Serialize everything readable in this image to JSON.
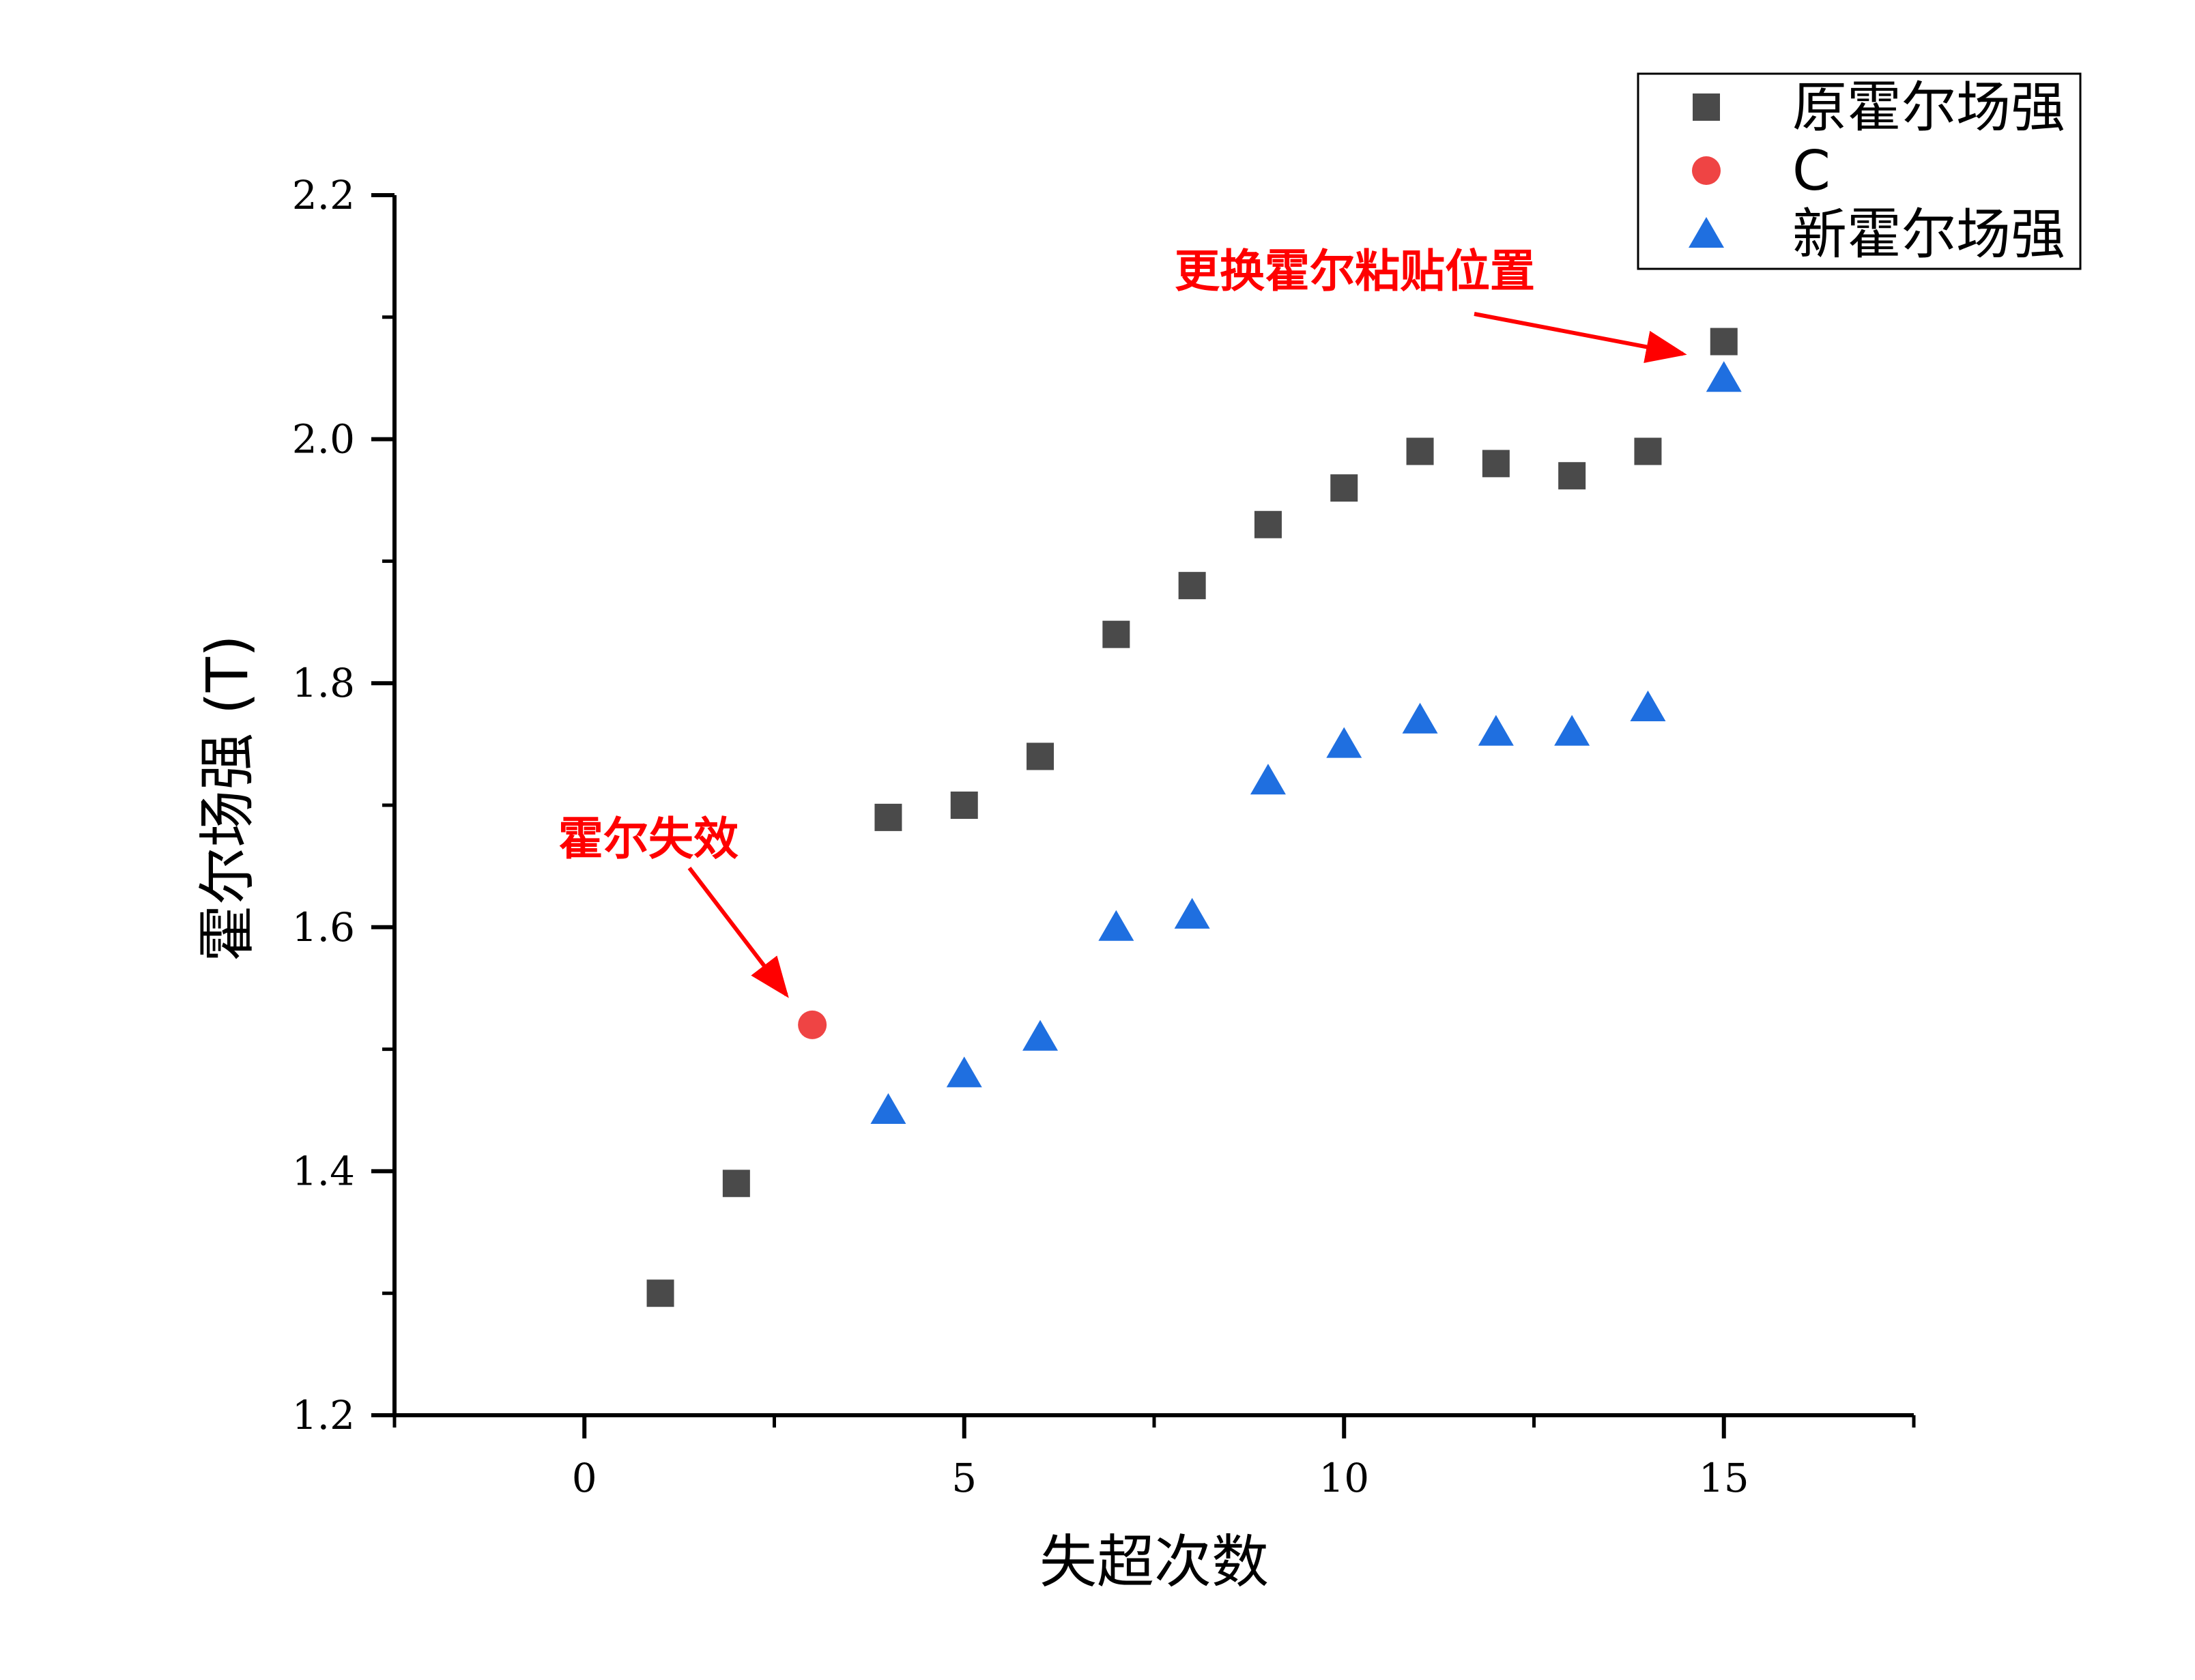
{
  "chart_data": {
    "type": "scatter",
    "title": "",
    "xlabel": "失超次数",
    "ylabel": "霍尔场强 (T)",
    "xlim": [
      -2.5,
      17.5
    ],
    "ylim": [
      1.2,
      2.2
    ],
    "x_ticks": [
      0,
      5,
      10,
      15
    ],
    "y_ticks": [
      1.2,
      1.4,
      1.6,
      1.8,
      2.0,
      2.2
    ],
    "x_tick_labels": [
      "0",
      "5",
      "10",
      "15"
    ],
    "y_tick_labels": [
      "1.2",
      "1.4",
      "1.6",
      "1.8",
      "2.0",
      "2.2"
    ],
    "grid": false,
    "legend_position": "top-right",
    "series": [
      {
        "name": "原霍尔场强",
        "marker": "square",
        "color": "#4a4a4a",
        "x": [
          1,
          2,
          4,
          5,
          6,
          7,
          8,
          9,
          10,
          11,
          12,
          13,
          14,
          15
        ],
        "y": [
          1.3,
          1.39,
          1.69,
          1.7,
          1.74,
          1.84,
          1.88,
          1.93,
          1.96,
          1.99,
          1.98,
          1.97,
          1.99,
          2.08
        ]
      },
      {
        "name": "C",
        "marker": "circle",
        "color": "#ef4444",
        "x": [
          3
        ],
        "y": [
          1.52
        ]
      },
      {
        "name": "新霍尔场强",
        "marker": "triangle",
        "color": "#1f6fe0",
        "x": [
          4,
          5,
          6,
          7,
          8,
          9,
          10,
          11,
          12,
          13,
          14,
          15
        ],
        "y": [
          1.45,
          1.48,
          1.51,
          1.6,
          1.61,
          1.72,
          1.75,
          1.77,
          1.76,
          1.76,
          1.78,
          2.05
        ]
      }
    ],
    "annotations": [
      {
        "text": "霍尔失效",
        "color": "#ff0000",
        "target_x": 3,
        "target_y": 1.52
      },
      {
        "text": "更换霍尔粘贴位置",
        "color": "#ff0000",
        "target_x": 15,
        "target_y": 2.08
      }
    ]
  }
}
